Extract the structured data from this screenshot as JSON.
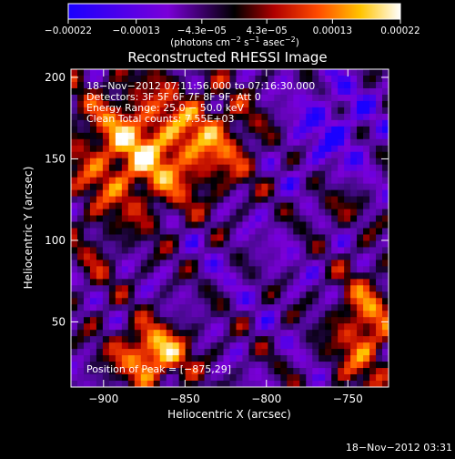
{
  "chart_data": {
    "type": "heatmap",
    "title": "Reconstructed RHESSI Image",
    "xlabel": "Heliocentric X (arcsec)",
    "ylabel": "Heliocentric Y (arcsec)",
    "xlim": [
      -920,
      -725
    ],
    "ylim": [
      10,
      205
    ],
    "x_ticks": [
      -900,
      -850,
      -800,
      -750
    ],
    "y_ticks": [
      50,
      100,
      150,
      200
    ],
    "x_tick_labels": [
      "−900",
      "−850",
      "−800",
      "−750"
    ],
    "y_tick_labels": [
      "50",
      "100",
      "150",
      "200"
    ],
    "colorbar": {
      "range": [
        -0.00022,
        0.00022
      ],
      "ticks": [
        -0.00022,
        -0.00013,
        -4.3e-05,
        4.3e-05,
        0.00013,
        0.00022
      ],
      "tick_labels": [
        "−0.00022",
        "−0.00013",
        "−4.3e−05",
        "4.3e−05",
        "0.00013",
        "0.00022"
      ],
      "units": "(photons cm",
      "units_exp1": "−2",
      "units_mid1": " s",
      "units_exp2": "−1",
      "units_mid2": " asec",
      "units_exp3": "−2",
      "units_end": ")",
      "colors": [
        "#1a00ff",
        "#7a00d8",
        "#000000",
        "#b00000",
        "#ff4a00",
        "#ffc400",
        "#ffffff"
      ]
    },
    "info_lines": [
      "18−Nov−2012 07:11:56.000 to 07:16:30.000",
      "Detectors: 3F 5F 6F 7F 8F 9F, Att 0",
      "Energy Range: 25.0 − 50.0 keV",
      "Clean    Total counts: 7.55E+03"
    ],
    "peak_label": "Position of Peak = [−875,29]",
    "peak": [
      -875,
      29
    ],
    "grid": false,
    "legend": "none"
  },
  "footer": {
    "timestamp": "18−Nov−2012 03:31"
  }
}
